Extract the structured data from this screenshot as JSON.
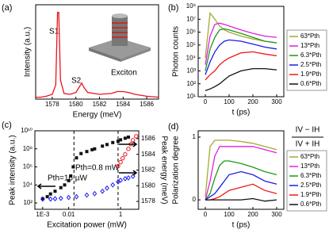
{
  "chart_data": [
    {
      "type": "line",
      "panel_label": "(a)",
      "xlabel": "Energy (meV)",
      "ylabel": "Intensity (a.u.)",
      "annotations": [
        "S1",
        "S2",
        "Exciton"
      ],
      "x": [
        1576.6,
        1577,
        1577.5,
        1578,
        1578.3,
        1578.45,
        1578.55,
        1578.7,
        1579,
        1579.5,
        1580,
        1580.3,
        1580.5,
        1580.7,
        1581,
        1582,
        1583,
        1583.5,
        1584,
        1584.5,
        1585,
        1586,
        1587
      ],
      "values": [
        0.02,
        0.02,
        0.03,
        0.05,
        0.15,
        0.92,
        0.92,
        0.2,
        0.06,
        0.05,
        0.07,
        0.13,
        0.17,
        0.12,
        0.07,
        0.05,
        0.06,
        0.08,
        0.08,
        0.07,
        0.05,
        0.03,
        0.02
      ],
      "color": "#e8141b",
      "xlim": [
        1576.6,
        1587
      ],
      "ylim": [
        0,
        1
      ],
      "xticks": [
        1578,
        1580,
        1582,
        1584,
        1586
      ]
    },
    {
      "type": "line",
      "panel_label": "(b)",
      "xlabel": "t (ps)",
      "ylabel": "Photon counts",
      "log_y": true,
      "x": [
        0,
        20,
        40,
        60,
        80,
        100,
        150,
        200,
        250,
        300
      ],
      "series": [
        {
          "name": "63*Pth",
          "color": "#a8a832",
          "values": [
            10000,
            30000000,
            10000000,
            3000000,
            1500000,
            1000000,
            500000,
            300000,
            200000,
            150000
          ]
        },
        {
          "name": "13*Pth",
          "color": "#e020e0",
          "values": [
            3000,
            500000,
            4000000,
            5000000,
            4000000,
            3000000,
            1500000,
            800000,
            500000,
            400000
          ]
        },
        {
          "name": "6.3*Pth",
          "color": "#1a9a1a",
          "values": [
            1000,
            50000,
            400000,
            1500000,
            1800000,
            1500000,
            800000,
            400000,
            200000,
            150000
          ]
        },
        {
          "name": "2.5*Pth",
          "color": "#1a1aee",
          "values": [
            500,
            5000,
            30000,
            100000,
            200000,
            250000,
            200000,
            120000,
            70000,
            50000
          ]
        },
        {
          "name": "1.9*Pth",
          "color": "#ee1a1a",
          "values": [
            200,
            500,
            1000,
            3000,
            6000,
            10000,
            25000,
            30000,
            20000,
            15000
          ]
        },
        {
          "name": "0.6*Pth",
          "color": "#111111",
          "values": [
            30,
            40,
            60,
            100,
            200,
            400,
            1000,
            1500,
            1500,
            1200
          ]
        }
      ],
      "xlim": [
        -30,
        330
      ],
      "ylim": [
        10,
        100000000
      ],
      "xticks": [
        0,
        100,
        200,
        300
      ],
      "yticks": [
        {
          "value": 10,
          "label": "10¹"
        },
        {
          "value": 100,
          "label": "10²"
        },
        {
          "value": 1000,
          "label": "10³"
        },
        {
          "value": 10000,
          "label": "10⁴"
        },
        {
          "value": 100000,
          "label": "10⁵"
        },
        {
          "value": 1000000,
          "label": "10⁶"
        },
        {
          "value": 10000000,
          "label": "10⁷"
        },
        {
          "value": 100000000,
          "label": "10⁸"
        }
      ]
    },
    {
      "type": "scatter",
      "panel_label": "(c)",
      "xlabel": "Excitation power (mW)",
      "ylabel": "Peak intensity (a.u.)",
      "y2label": "Peak energy (meV)",
      "log_x": true,
      "log_y": true,
      "annotations": [
        "Pth=16 µW",
        "Pth=0.8 mW"
      ],
      "vlines": [
        0.016,
        0.8
      ],
      "series": [
        {
          "color": "#111111",
          "marker": "square",
          "x": [
            0.001,
            0.0015,
            0.002,
            0.003,
            0.005,
            0.007,
            0.01,
            0.012,
            0.015,
            0.02,
            0.03,
            0.05,
            0.08,
            0.1,
            0.2,
            0.3,
            0.5,
            0.8,
            1,
            1.5,
            2
          ],
          "values": [
            300,
            500,
            1000,
            2000,
            5000,
            10000,
            30000,
            100000,
            1000000,
            10000000,
            30000000,
            50000000,
            80000000,
            100000000,
            200000000,
            300000000,
            500000000,
            700000000,
            1000000000,
            1500000000,
            2000000000
          ]
        },
        {
          "color": "#e8141b",
          "marker": "circle",
          "axis": "y2",
          "x": [
            0.8,
            1,
            1.2,
            1.5,
            2,
            2.5,
            3,
            4
          ],
          "values": [
            1582.5,
            1583,
            1583.5,
            1584,
            1584.7,
            1585.3,
            1585.8,
            1586.3
          ]
        },
        {
          "color": "#1a1aee",
          "marker": "diamond",
          "axis": "y2",
          "x": [
            0.001,
            0.002,
            0.003,
            0.005,
            0.01,
            0.02,
            0.05,
            0.1,
            0.2,
            0.3,
            0.5,
            0.8,
            1,
            1.5,
            2,
            3
          ],
          "values": [
            1578.3,
            1578.3,
            1578.35,
            1578.4,
            1578.5,
            1578.6,
            1578.8,
            1579,
            1579.3,
            1579.7,
            1580.1,
            1580.5,
            1580.7,
            1580.9,
            1581,
            1581.2
          ]
        }
      ],
      "xlim": [
        0.0005,
        5
      ],
      "ylim": [
        20,
        10000000000
      ],
      "y2lim": [
        1577,
        1587
      ],
      "xticks": [
        {
          "value": 0.001,
          "label": "1E-3"
        },
        0.01,
        1
      ],
      "yticks": [
        {
          "value": 100,
          "label": "10²"
        },
        {
          "value": 10000,
          "label": "10⁴"
        },
        {
          "value": 1000000,
          "label": "10⁶"
        },
        {
          "value": 100000000,
          "label": "10⁸"
        },
        {
          "value": 10000000000,
          "label": "10¹⁰"
        }
      ],
      "y2ticks": [
        1578,
        1580,
        1582,
        1584,
        1586
      ]
    },
    {
      "type": "line",
      "panel_label": "(d)",
      "xlabel": "t (ps)",
      "ylabel": "Polarization degree",
      "annotations": [
        "IV − IH",
        "IV + IH"
      ],
      "x": [
        0,
        20,
        40,
        60,
        80,
        100,
        150,
        200,
        250,
        300
      ],
      "series": [
        {
          "name": "63*Pth",
          "color": "#a8a832",
          "values": [
            0.05,
            0.85,
            0.95,
            0.95,
            0.95,
            0.95,
            0.93,
            0.9,
            0.85,
            0.8
          ]
        },
        {
          "name": "13*Pth",
          "color": "#e020e0",
          "values": [
            0,
            0.3,
            0.7,
            0.85,
            0.85,
            0.85,
            0.85,
            0.85,
            0.8,
            0.75
          ]
        },
        {
          "name": "6.3*Pth",
          "color": "#1a9a1a",
          "values": [
            0,
            0.1,
            0.35,
            0.55,
            0.62,
            0.62,
            0.58,
            0.52,
            0.45,
            0.4
          ]
        },
        {
          "name": "2.5*Pth",
          "color": "#1a1aee",
          "values": [
            0,
            0.05,
            0.1,
            0.2,
            0.3,
            0.4,
            0.45,
            0.4,
            0.3,
            0.25
          ]
        },
        {
          "name": "1.9*Pth",
          "color": "#ee1a1a",
          "values": [
            0,
            0,
            0.02,
            0.05,
            0.1,
            0.15,
            0.2,
            0.25,
            0.15,
            0.1
          ]
        },
        {
          "name": "0.6*Pth",
          "color": "#111111",
          "values": [
            0,
            0,
            0,
            0,
            0,
            0,
            0,
            0.02,
            -0.02,
            0
          ]
        }
      ],
      "xlim": [
        -30,
        330
      ],
      "ylim": [
        -0.15,
        1.1
      ],
      "xticks": [
        0,
        100,
        200,
        300
      ],
      "yticks": [
        0,
        1
      ]
    }
  ]
}
